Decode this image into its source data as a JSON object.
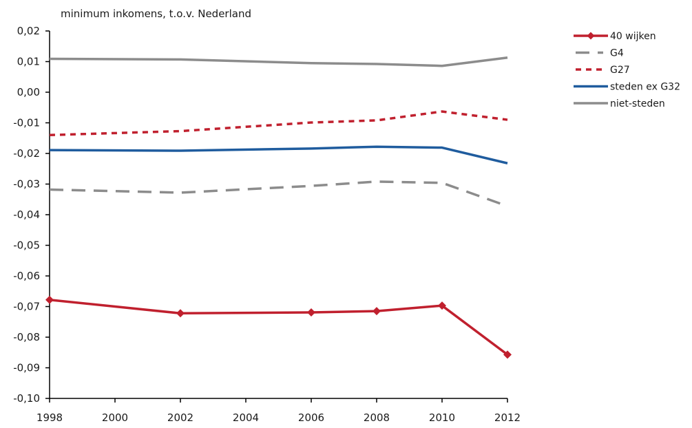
{
  "chart_data": {
    "type": "line",
    "title": "minimum inkomens, t.o.v. Nederland",
    "xlabel": "",
    "ylabel": "",
    "xlim": [
      1998,
      2012
    ],
    "ylim": [
      -0.1,
      0.02
    ],
    "x_ticks": [
      "1998",
      "2000",
      "2002",
      "2004",
      "2006",
      "2008",
      "2010",
      "2012"
    ],
    "y_ticks": [
      "0,02",
      "0,01",
      "0,00",
      "-0,01",
      "-0,02",
      "-0,03",
      "-0,04",
      "-0,05",
      "-0,06",
      "-0,07",
      "-0,08",
      "-0,09",
      "-0,10"
    ],
    "grid": false,
    "legend_position": "top-right",
    "series": [
      {
        "name": "40 wijken",
        "color": "#c0202e",
        "style": "solid-markers",
        "x": [
          1998,
          2002,
          2006,
          2008,
          2010,
          2012
        ],
        "y": [
          -0.0678,
          -0.0722,
          -0.0719,
          -0.0715,
          -0.0697,
          -0.0857
        ]
      },
      {
        "name": "G4",
        "color": "#8c8c8c",
        "style": "long-dash",
        "x": [
          1998,
          2002,
          2006,
          2008,
          2010,
          2012
        ],
        "y": [
          -0.0318,
          -0.0328,
          -0.0306,
          -0.0292,
          -0.0296,
          -0.0372
        ]
      },
      {
        "name": "G27",
        "color": "#c0202e",
        "style": "short-dash",
        "x": [
          1998,
          2002,
          2006,
          2008,
          2010,
          2012
        ],
        "y": [
          -0.014,
          -0.0127,
          -0.0099,
          -0.0092,
          -0.0063,
          -0.009
        ]
      },
      {
        "name": "steden ex G32",
        "color": "#1f5c9e",
        "style": "solid",
        "x": [
          1998,
          2002,
          2006,
          2008,
          2010,
          2012
        ],
        "y": [
          -0.0189,
          -0.0191,
          -0.0184,
          -0.0178,
          -0.0181,
          -0.0232
        ]
      },
      {
        "name": "niet-steden",
        "color": "#8c8c8c",
        "style": "solid",
        "x": [
          1998,
          2002,
          2006,
          2008,
          2010,
          2012
        ],
        "y": [
          0.0109,
          0.0107,
          0.0095,
          0.0092,
          0.0086,
          0.0113
        ]
      }
    ]
  }
}
